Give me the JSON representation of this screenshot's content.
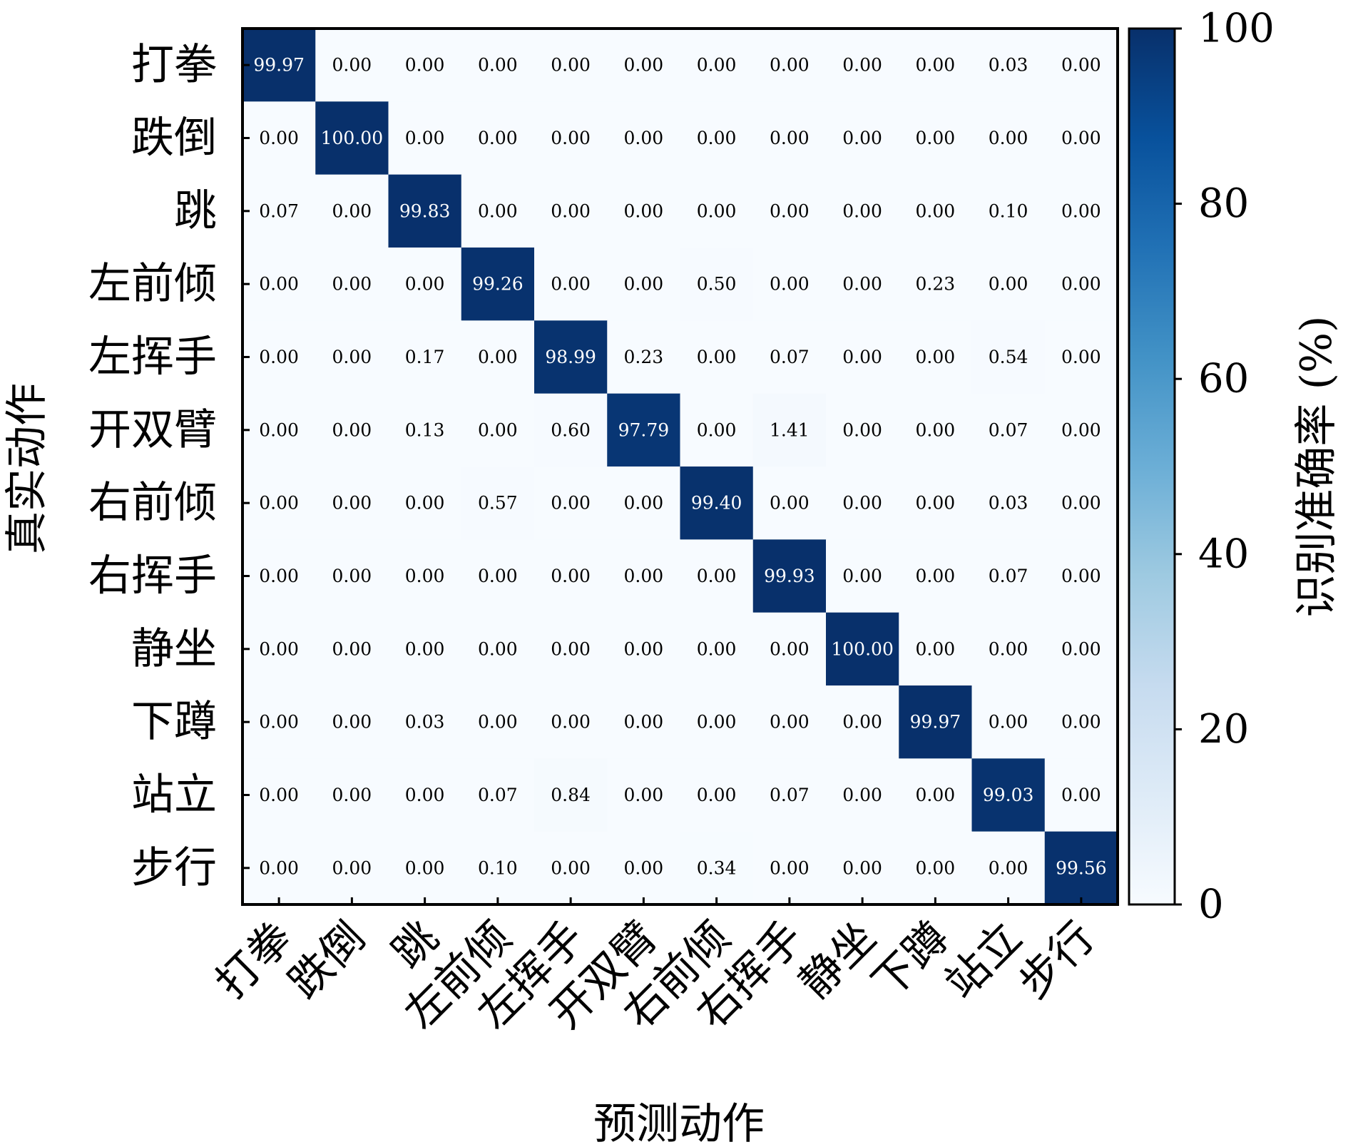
{
  "chart_data": {
    "type": "heatmap",
    "title": "",
    "xlabel": "预测动作",
    "ylabel": "真实动作",
    "colorbar_label": "识别准确率 (%)",
    "colormap": "Blues",
    "colorbar_range": [
      0,
      100
    ],
    "colorbar_ticks": [
      "0",
      "20",
      "40",
      "60",
      "80",
      "100"
    ],
    "grid": false,
    "row_labels": [
      "打拳",
      "跌倒",
      "跳",
      "左前倾",
      "左挥手",
      "开双臂",
      "右前倾",
      "右挥手",
      "静坐",
      "下蹲",
      "站立",
      "步行"
    ],
    "col_labels": [
      "打拳",
      "跌倒",
      "跳",
      "左前倾",
      "左挥手",
      "开双臂",
      "右前倾",
      "右挥手",
      "静坐",
      "下蹲",
      "站立",
      "步行"
    ],
    "values": [
      [
        "99.97",
        "0.00",
        "0.00",
        "0.00",
        "0.00",
        "0.00",
        "0.00",
        "0.00",
        "0.00",
        "0.00",
        "0.03",
        "0.00"
      ],
      [
        "0.00",
        "100.00",
        "0.00",
        "0.00",
        "0.00",
        "0.00",
        "0.00",
        "0.00",
        "0.00",
        "0.00",
        "0.00",
        "0.00"
      ],
      [
        "0.07",
        "0.00",
        "99.83",
        "0.00",
        "0.00",
        "0.00",
        "0.00",
        "0.00",
        "0.00",
        "0.00",
        "0.10",
        "0.00"
      ],
      [
        "0.00",
        "0.00",
        "0.00",
        "99.26",
        "0.00",
        "0.00",
        "0.50",
        "0.00",
        "0.00",
        "0.23",
        "0.00",
        "0.00"
      ],
      [
        "0.00",
        "0.00",
        "0.17",
        "0.00",
        "98.99",
        "0.23",
        "0.00",
        "0.07",
        "0.00",
        "0.00",
        "0.54",
        "0.00"
      ],
      [
        "0.00",
        "0.00",
        "0.13",
        "0.00",
        "0.60",
        "97.79",
        "0.00",
        "1.41",
        "0.00",
        "0.00",
        "0.07",
        "0.00"
      ],
      [
        "0.00",
        "0.00",
        "0.00",
        "0.57",
        "0.00",
        "0.00",
        "99.40",
        "0.00",
        "0.00",
        "0.00",
        "0.03",
        "0.00"
      ],
      [
        "0.00",
        "0.00",
        "0.00",
        "0.00",
        "0.00",
        "0.00",
        "0.00",
        "99.93",
        "0.00",
        "0.00",
        "0.07",
        "0.00"
      ],
      [
        "0.00",
        "0.00",
        "0.00",
        "0.00",
        "0.00",
        "0.00",
        "0.00",
        "0.00",
        "100.00",
        "0.00",
        "0.00",
        "0.00"
      ],
      [
        "0.00",
        "0.00",
        "0.03",
        "0.00",
        "0.00",
        "0.00",
        "0.00",
        "0.00",
        "0.00",
        "99.97",
        "0.00",
        "0.00"
      ],
      [
        "0.00",
        "0.00",
        "0.00",
        "0.07",
        "0.84",
        "0.00",
        "0.00",
        "0.07",
        "0.00",
        "0.00",
        "99.03",
        "0.00"
      ],
      [
        "0.00",
        "0.00",
        "0.00",
        "0.10",
        "0.00",
        "0.00",
        "0.34",
        "0.00",
        "0.00",
        "0.00",
        "0.00",
        "99.56"
      ]
    ]
  }
}
